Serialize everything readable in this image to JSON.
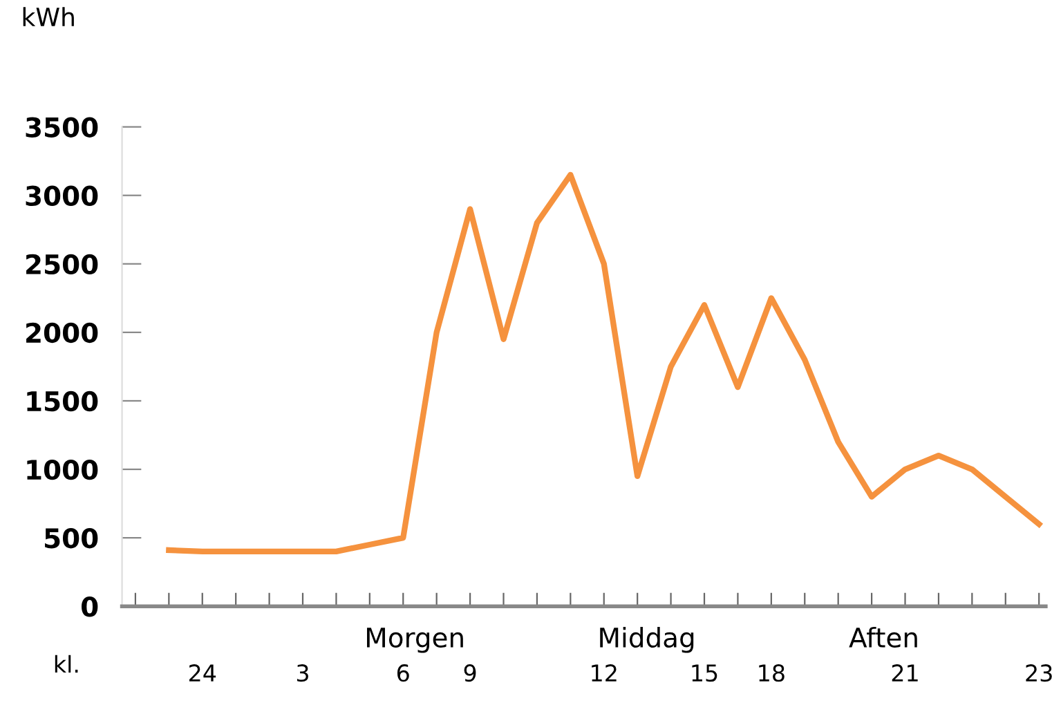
{
  "chart_data": {
    "type": "line",
    "ylabel": "kWh",
    "categories": [
      null,
      null,
      "24",
      null,
      null,
      "3",
      null,
      null,
      "6",
      null,
      "9",
      null,
      null,
      null,
      "12",
      null,
      null,
      "15",
      null,
      "18",
      null,
      null,
      null,
      "21",
      null,
      null,
      null,
      "23"
    ],
    "series": [
      {
        "color": "#f5923e",
        "values": [
          null,
          410,
          400,
          400,
          400,
          400,
          400,
          450,
          500,
          2000,
          2900,
          1950,
          2800,
          3150,
          2500,
          950,
          1750,
          2200,
          1600,
          2250,
          1800,
          1200,
          800,
          1000,
          1100,
          1000,
          800,
          600
        ]
      }
    ],
    "ylim": [
      0,
      3500
    ],
    "yticks": [
      0,
      500,
      1000,
      1500,
      2000,
      2500,
      3000,
      3500
    ],
    "annotations": [
      "kl.",
      "Morgen",
      "Middag",
      "Aften"
    ],
    "grid": false,
    "legend": false,
    "marker": "none",
    "line_style": "solid"
  }
}
